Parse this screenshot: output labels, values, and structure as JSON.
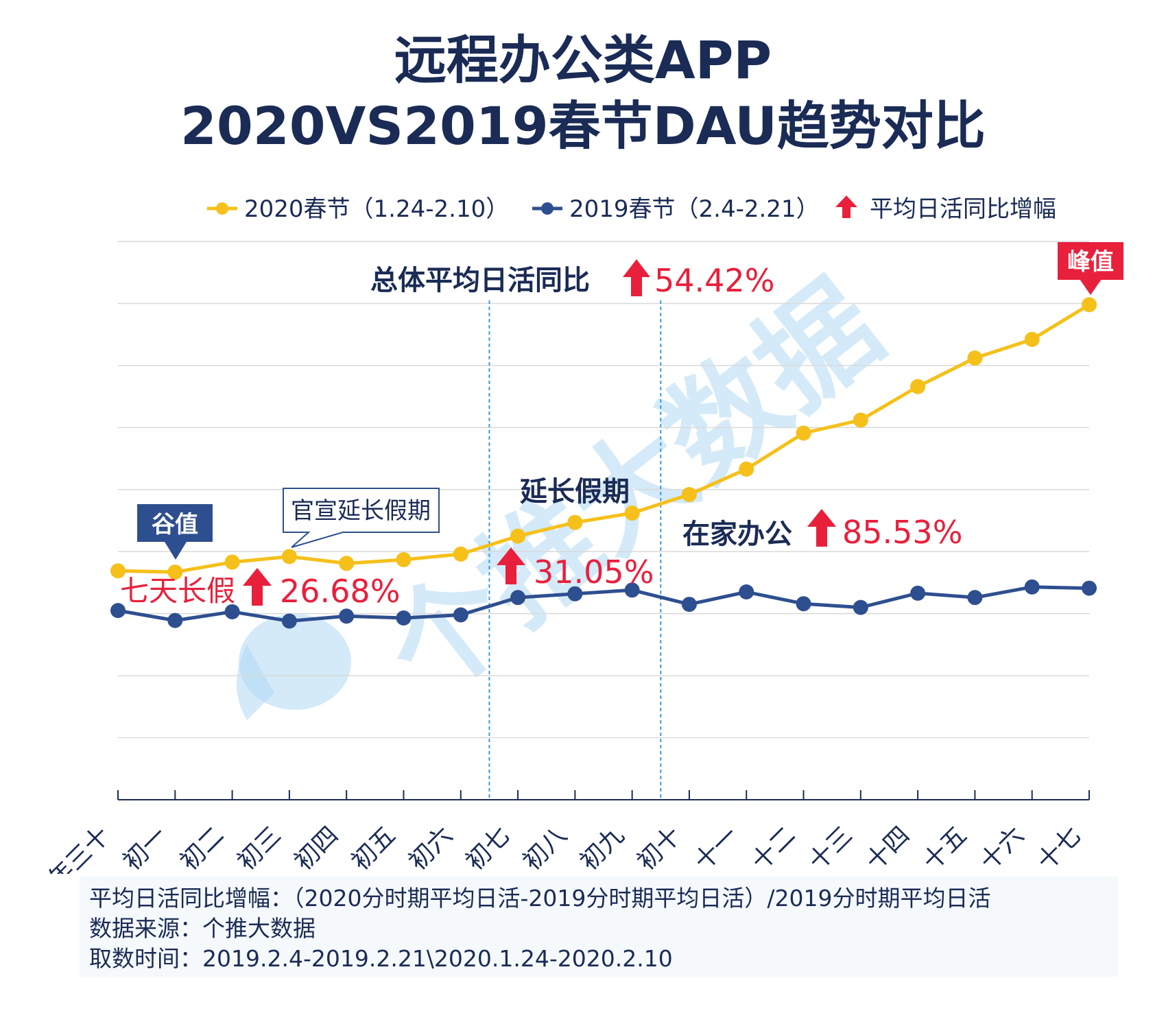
{
  "title": {
    "line1": "远程办公类APP",
    "line2": "2020VS2019春节DAU趋势对比"
  },
  "legend": {
    "series_2020": "2020春节（1.24-2.10）",
    "series_2019": "2019春节（2.4-2.21）",
    "growth": "平均日活同比增幅"
  },
  "colors": {
    "series_2020": "#f5c01a",
    "series_2019": "#2e4f8f",
    "accent_red": "#e8203c",
    "navy": "#1a2b55",
    "divider": "#3a9ad9",
    "grid": "#d9d9d9"
  },
  "annotations": {
    "overall_label": "总体平均日活同比",
    "overall_value": "54.42%",
    "peak": "峰值",
    "valley": "谷值",
    "announce": "官宣延长假期",
    "extended": "延长假期",
    "seven_day_label": "七天长假",
    "seven_day_value": "26.68%",
    "extended_value": "31.05%",
    "home_label": "在家办公",
    "home_value": "85.53%"
  },
  "watermark": "个推大数据",
  "footer": {
    "line1": "平均日活同比增幅：（2020分时期平均日活-2019分时期平均日活）/2019分时期平均日活",
    "line2": "数据来源：个推大数据",
    "line3": "取数时间：2019.2.4-2019.2.21\\2020.1.24-2020.2.10"
  },
  "chart_data": {
    "type": "line",
    "categories": [
      "年三十",
      "初一",
      "初二",
      "初三",
      "初四",
      "初五",
      "初六",
      "初七",
      "初八",
      "初九",
      "初十",
      "十一",
      "十二",
      "十三",
      "十四",
      "十五",
      "十六",
      "十七"
    ],
    "series": [
      {
        "name": "2020春节（1.24-2.10）",
        "values": [
          3.69,
          3.67,
          3.83,
          3.92,
          3.81,
          3.87,
          3.96,
          4.25,
          4.47,
          4.62,
          4.92,
          5.33,
          5.91,
          6.12,
          6.66,
          7.12,
          7.42,
          7.98
        ]
      },
      {
        "name": "2019春节（2.4-2.21）",
        "values": [
          3.05,
          2.89,
          3.03,
          2.88,
          2.96,
          2.93,
          2.98,
          3.26,
          3.32,
          3.38,
          3.15,
          3.35,
          3.16,
          3.1,
          3.33,
          3.26,
          3.43,
          3.41
        ]
      }
    ],
    "ylim": [
      0,
      9
    ],
    "y_ticks_labeled": false,
    "grid": true,
    "legend_position": "top-right",
    "period_dividers_after": [
      "初六",
      "初九"
    ]
  }
}
